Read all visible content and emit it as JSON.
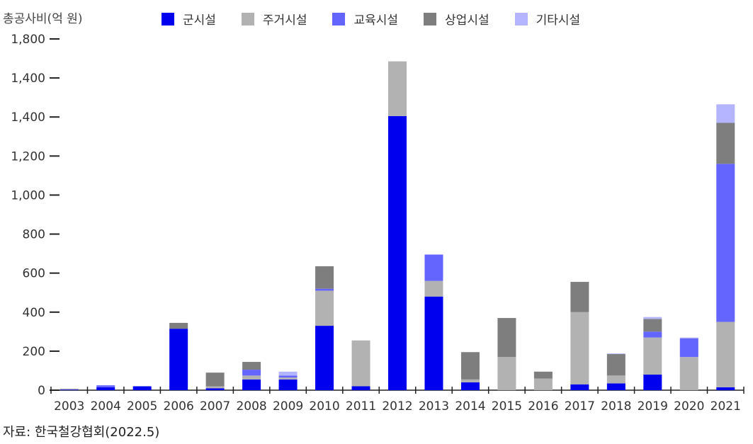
{
  "chart_data": {
    "type": "bar",
    "stacked": true,
    "ylabel": "총공사비(억 원)",
    "ylim": [
      0,
      1800
    ],
    "y_ticks": [
      "0",
      "200",
      "400",
      "600",
      "800",
      "1,000",
      "1,200",
      "1,400",
      "1,400",
      "1,800"
    ],
    "categories": [
      "2003",
      "2004",
      "2005",
      "2006",
      "2007",
      "2008",
      "2009",
      "2010",
      "2011",
      "2012",
      "2013",
      "2014",
      "2015",
      "2016",
      "2017",
      "2018",
      "2019",
      "2020",
      "2021"
    ],
    "series": [
      {
        "name": "군시설",
        "color": "#0000ee",
        "values": [
          3,
          15,
          20,
          315,
          10,
          55,
          55,
          330,
          20,
          1405,
          480,
          40,
          0,
          0,
          30,
          35,
          80,
          0,
          15
        ]
      },
      {
        "name": "주거시설",
        "color": "#b2b2b2",
        "values": [
          5,
          0,
          0,
          0,
          10,
          20,
          10,
          180,
          235,
          280,
          80,
          15,
          170,
          60,
          370,
          40,
          190,
          170,
          335
        ]
      },
      {
        "name": "교육시설",
        "color": "#6464ff",
        "values": [
          0,
          10,
          0,
          0,
          0,
          30,
          10,
          10,
          0,
          0,
          135,
          0,
          0,
          0,
          0,
          0,
          30,
          95,
          810
        ]
      },
      {
        "name": "상업시설",
        "color": "#7e7e7e",
        "values": [
          0,
          0,
          0,
          30,
          70,
          40,
          0,
          115,
          0,
          0,
          0,
          140,
          200,
          35,
          155,
          110,
          65,
          0,
          210
        ]
      },
      {
        "name": "기타시설",
        "color": "#b4b4ff",
        "values": [
          0,
          0,
          0,
          0,
          0,
          0,
          20,
          0,
          0,
          0,
          0,
          0,
          0,
          0,
          0,
          3,
          10,
          5,
          95
        ]
      }
    ],
    "legend_position": "top",
    "grid": false
  },
  "source": "자료:  한국철강협회(2022.5)"
}
